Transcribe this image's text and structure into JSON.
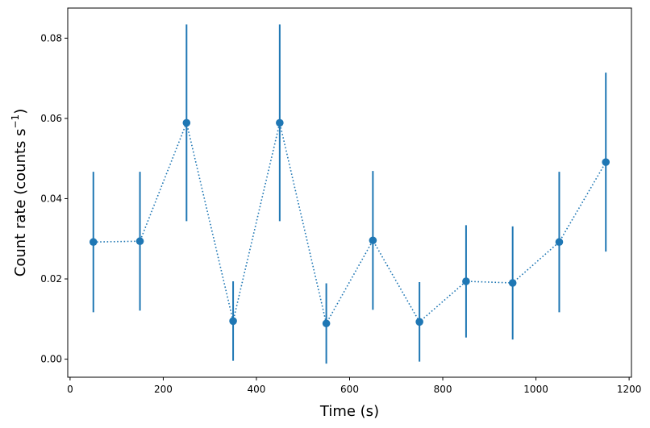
{
  "chart_data": {
    "type": "scatter",
    "xlabel": "Time (s)",
    "ylabel_main": "Count rate (counts s",
    "ylabel_sup": "−1",
    "ylabel_close": ")",
    "xlim": [
      -5,
      1205
    ],
    "ylim": [
      -0.0045,
      0.0875
    ],
    "xticks": [
      0,
      200,
      400,
      600,
      800,
      1000,
      1200
    ],
    "yticks": [
      0.0,
      0.02,
      0.04,
      0.06,
      0.08
    ],
    "ytick_labels": [
      "0.00",
      "0.02",
      "0.04",
      "0.06",
      "0.08"
    ],
    "grid": false,
    "series_color": "#1f77b4",
    "line_style": "dotted",
    "points": [
      {
        "x": 50,
        "y": 0.0292,
        "err": 0.0175
      },
      {
        "x": 150,
        "y": 0.0294,
        "err": 0.0173
      },
      {
        "x": 250,
        "y": 0.0589,
        "err": 0.0245
      },
      {
        "x": 350,
        "y": 0.0095,
        "err": 0.0099
      },
      {
        "x": 450,
        "y": 0.0589,
        "err": 0.0245
      },
      {
        "x": 550,
        "y": 0.0089,
        "err": 0.01
      },
      {
        "x": 650,
        "y": 0.0296,
        "err": 0.0173
      },
      {
        "x": 750,
        "y": 0.0093,
        "err": 0.0099
      },
      {
        "x": 850,
        "y": 0.0194,
        "err": 0.014
      },
      {
        "x": 950,
        "y": 0.019,
        "err": 0.0141
      },
      {
        "x": 1050,
        "y": 0.0292,
        "err": 0.0175
      },
      {
        "x": 1150,
        "y": 0.0491,
        "err": 0.0223
      }
    ]
  }
}
